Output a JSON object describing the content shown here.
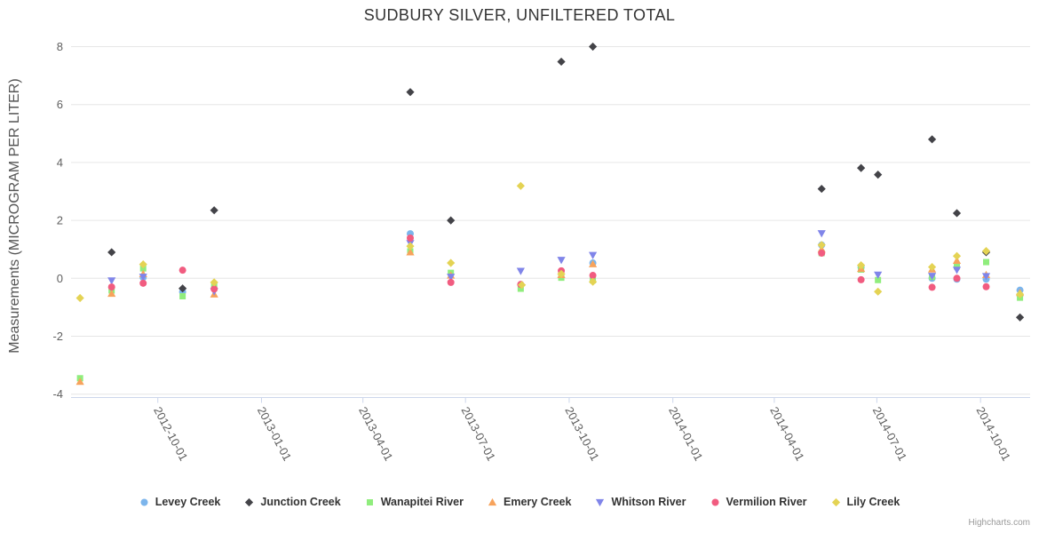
{
  "title": "SUDBURY SILVER, UNFILTERED TOTAL",
  "credit": "Highcharts.com",
  "chart_data": {
    "type": "scatter",
    "title": "SUDBURY SILVER, UNFILTERED TOTAL",
    "xlabel": "",
    "ylabel": "Measurements (MICROGRAM PER LITER)",
    "x_type": "datetime",
    "x_range": [
      "2012-07-16",
      "2014-11-14"
    ],
    "ylim": [
      -4,
      8
    ],
    "y_ticks": [
      8,
      6,
      4,
      2,
      0,
      -2,
      -4
    ],
    "x_ticks": [
      "2012-10-01",
      "2013-01-01",
      "2013-04-01",
      "2013-07-01",
      "2013-10-01",
      "2014-01-01",
      "2014-04-01",
      "2014-07-01",
      "2014-10-01"
    ],
    "grid": "horizontal",
    "legend_position": "bottom",
    "colors": {
      "grid": "#e6e6e6",
      "axis_line": "#ccd6eb",
      "tick_label": "#606060",
      "axis_title": "#555555",
      "title": "#333333",
      "legend_text": "#333333"
    },
    "series": [
      {
        "name": "Levey Creek",
        "color": "#7cb5ec",
        "marker": "circle",
        "points": [
          [
            "2012-09-18",
            0.03
          ],
          [
            "2012-10-23",
            -0.47
          ],
          [
            "2013-05-13",
            1.54
          ],
          [
            "2013-10-22",
            0.53
          ],
          [
            "2014-05-13",
            1.15
          ],
          [
            "2014-06-17",
            0.38
          ],
          [
            "2014-08-19",
            0.0
          ],
          [
            "2014-09-10",
            -0.03
          ],
          [
            "2014-10-06",
            -0.03
          ],
          [
            "2014-11-05",
            -0.41
          ]
        ]
      },
      {
        "name": "Junction Creek",
        "color": "#434348",
        "marker": "diamond",
        "points": [
          [
            "2012-08-21",
            0.9
          ],
          [
            "2012-10-23",
            -0.35
          ],
          [
            "2012-11-20",
            2.35
          ],
          [
            "2013-05-13",
            6.43
          ],
          [
            "2013-06-18",
            2.0
          ],
          [
            "2013-09-24",
            7.48
          ],
          [
            "2013-10-22",
            8.0
          ],
          [
            "2014-05-13",
            3.09
          ],
          [
            "2014-06-17",
            3.81
          ],
          [
            "2014-07-02",
            3.58
          ],
          [
            "2014-08-19",
            4.8
          ],
          [
            "2014-09-10",
            2.25
          ],
          [
            "2014-10-06",
            0.9
          ],
          [
            "2014-11-05",
            -1.35
          ]
        ]
      },
      {
        "name": "Wanapitei River",
        "color": "#90ed7d",
        "marker": "square",
        "points": [
          [
            "2012-07-24",
            -3.45
          ],
          [
            "2012-08-21",
            -0.42
          ],
          [
            "2012-09-18",
            0.34
          ],
          [
            "2012-10-23",
            -0.62
          ],
          [
            "2012-11-20",
            -0.27
          ],
          [
            "2013-05-13",
            0.93
          ],
          [
            "2013-06-18",
            0.19
          ],
          [
            "2013-08-19",
            -0.36
          ],
          [
            "2013-09-24",
            0.02
          ],
          [
            "2013-10-22",
            -0.07
          ],
          [
            "2014-05-13",
            0.87
          ],
          [
            "2014-06-17",
            0.3
          ],
          [
            "2014-07-02",
            -0.06
          ],
          [
            "2014-08-19",
            0.05
          ],
          [
            "2014-09-10",
            0.41
          ],
          [
            "2014-10-06",
            0.56
          ],
          [
            "2014-11-05",
            -0.67
          ]
        ]
      },
      {
        "name": "Emery Creek",
        "color": "#f7a35c",
        "marker": "triangle",
        "points": [
          [
            "2012-07-24",
            -3.57
          ],
          [
            "2012-08-21",
            -0.53
          ],
          [
            "2012-09-18",
            0.15
          ],
          [
            "2012-11-20",
            -0.55
          ],
          [
            "2013-05-13",
            0.9
          ],
          [
            "2013-06-18",
            0.1
          ],
          [
            "2013-09-24",
            0.12
          ],
          [
            "2013-10-22",
            0.49
          ],
          [
            "2014-05-13",
            1.0
          ],
          [
            "2014-06-17",
            0.33
          ],
          [
            "2014-08-19",
            0.31
          ],
          [
            "2014-09-10",
            0.61
          ],
          [
            "2014-10-06",
            0.12
          ],
          [
            "2014-11-05",
            -0.5
          ]
        ]
      },
      {
        "name": "Whitson River",
        "color": "#8085e9",
        "marker": "triangle-down",
        "points": [
          [
            "2012-08-21",
            -0.08
          ],
          [
            "2012-09-18",
            0.05
          ],
          [
            "2012-11-20",
            -0.45
          ],
          [
            "2013-05-13",
            1.21
          ],
          [
            "2013-06-18",
            0.05
          ],
          [
            "2013-08-19",
            0.25
          ],
          [
            "2013-09-24",
            0.63
          ],
          [
            "2013-10-22",
            0.8
          ],
          [
            "2014-05-13",
            1.55
          ],
          [
            "2014-07-02",
            0.12
          ],
          [
            "2014-08-19",
            0.08
          ],
          [
            "2014-09-10",
            0.29
          ],
          [
            "2014-10-06",
            0.07
          ]
        ]
      },
      {
        "name": "Vermilion River",
        "color": "#f15c80",
        "marker": "circle",
        "points": [
          [
            "2012-08-21",
            -0.3
          ],
          [
            "2012-09-18",
            -0.17
          ],
          [
            "2012-10-23",
            0.28
          ],
          [
            "2012-11-20",
            -0.37
          ],
          [
            "2013-05-13",
            1.39
          ],
          [
            "2013-06-18",
            -0.14
          ],
          [
            "2013-08-19",
            -0.21
          ],
          [
            "2013-09-24",
            0.26
          ],
          [
            "2013-10-22",
            0.1
          ],
          [
            "2014-05-13",
            0.87
          ],
          [
            "2014-06-17",
            -0.05
          ],
          [
            "2014-08-19",
            -0.31
          ],
          [
            "2014-09-10",
            0.0
          ],
          [
            "2014-10-06",
            -0.29
          ]
        ]
      },
      {
        "name": "Lily Creek",
        "color": "#e4d354",
        "marker": "diamond",
        "points": [
          [
            "2012-07-24",
            -0.68
          ],
          [
            "2012-09-18",
            0.48
          ],
          [
            "2012-11-20",
            -0.14
          ],
          [
            "2013-05-13",
            1.11
          ],
          [
            "2013-06-18",
            0.53
          ],
          [
            "2013-08-19",
            3.19
          ],
          [
            "2013-08-20",
            -0.23
          ],
          [
            "2013-09-24",
            0.15
          ],
          [
            "2013-10-22",
            -0.12
          ],
          [
            "2014-05-13",
            1.15
          ],
          [
            "2014-06-17",
            0.45
          ],
          [
            "2014-07-02",
            -0.46
          ],
          [
            "2014-08-19",
            0.39
          ],
          [
            "2014-09-10",
            0.77
          ],
          [
            "2014-10-06",
            0.94
          ],
          [
            "2014-11-05",
            -0.55
          ]
        ]
      }
    ]
  }
}
